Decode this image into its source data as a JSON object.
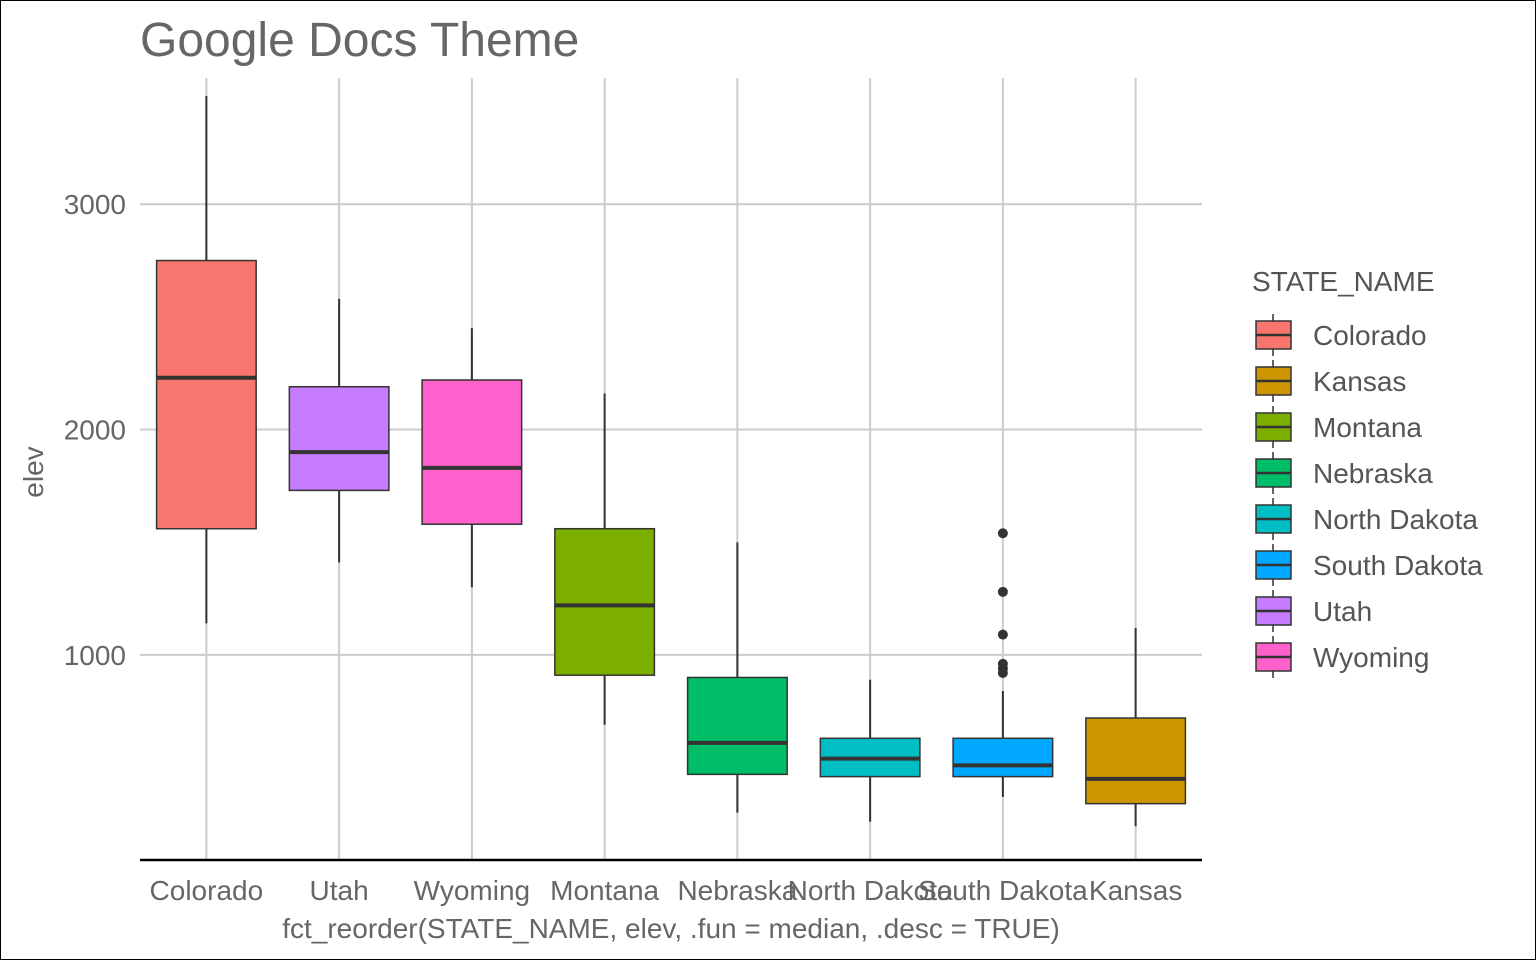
{
  "chart_data": {
    "type": "box",
    "title": "Google Docs Theme",
    "xlabel": "fct_reorder(STATE_NAME, elev, .fun = median, .desc = TRUE)",
    "ylabel": "elev",
    "ylim": [
      90,
      3560
    ],
    "yticks": [
      1000,
      2000,
      3000
    ],
    "grid": true,
    "legend": {
      "title": "STATE_NAME",
      "position": "right",
      "items": [
        "Colorado",
        "Kansas",
        "Montana",
        "Nebraska",
        "North Dakota",
        "South Dakota",
        "Utah",
        "Wyoming"
      ]
    },
    "categories": [
      "Colorado",
      "Utah",
      "Wyoming",
      "Montana",
      "Nebraska",
      "North Dakota",
      "South Dakota",
      "Kansas"
    ],
    "series": [
      {
        "name": "Colorado",
        "color": "#F8766D",
        "whisker_low": 1140,
        "q1": 1560,
        "median": 2230,
        "q3": 2750,
        "whisker_high": 3480,
        "outliers": []
      },
      {
        "name": "Utah",
        "color": "#C77CFF",
        "whisker_low": 1410,
        "q1": 1730,
        "median": 1900,
        "q3": 2190,
        "whisker_high": 2580,
        "outliers": []
      },
      {
        "name": "Wyoming",
        "color": "#FF61CC",
        "whisker_low": 1300,
        "q1": 1580,
        "median": 1830,
        "q3": 2220,
        "whisker_high": 2450,
        "outliers": []
      },
      {
        "name": "Montana",
        "color": "#7CAE00",
        "whisker_low": 690,
        "q1": 910,
        "median": 1220,
        "q3": 1560,
        "whisker_high": 2160,
        "outliers": []
      },
      {
        "name": "Nebraska",
        "color": "#00BE67",
        "whisker_low": 300,
        "q1": 470,
        "median": 610,
        "q3": 900,
        "whisker_high": 1500,
        "outliers": []
      },
      {
        "name": "North Dakota",
        "color": "#00BFC4",
        "whisker_low": 260,
        "q1": 460,
        "median": 540,
        "q3": 630,
        "whisker_high": 890,
        "outliers": []
      },
      {
        "name": "South Dakota",
        "color": "#00A9FF",
        "whisker_low": 370,
        "q1": 460,
        "median": 510,
        "q3": 630,
        "whisker_high": 840,
        "outliers": [
          1540,
          1280,
          1090,
          960,
          940,
          920
        ]
      },
      {
        "name": "Kansas",
        "color": "#CD9600",
        "whisker_low": 240,
        "q1": 340,
        "median": 450,
        "q3": 720,
        "whisker_high": 1120,
        "outliers": []
      }
    ]
  }
}
